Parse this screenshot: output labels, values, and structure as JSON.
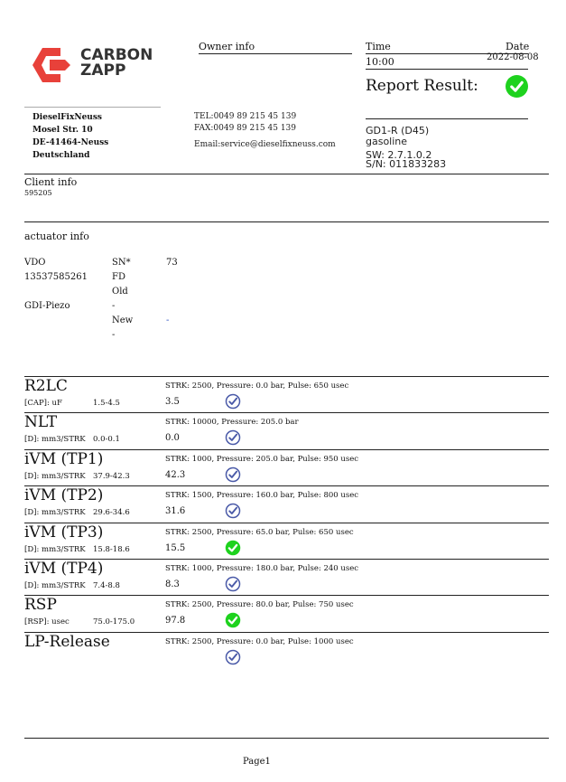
{
  "logo": {
    "line1": "CARBON",
    "line2": "ZAPP",
    "color": "#e8413a"
  },
  "owner": {
    "label": "Owner info",
    "name": "DieselFixNeuss",
    "street": "Mosel Str. 10",
    "city": "DE-41464-Neuss",
    "country": "Deutschland",
    "tel": "TEL:0049 89 215 45 139",
    "fax": "FAX:0049 89 215 45 139",
    "email": "Email:service@dieselfixneuss.com"
  },
  "report": {
    "time_label": "Time",
    "date_label": "Date",
    "time": "10:00",
    "date": "2022-08-08",
    "result_label": "Report Result:",
    "result_icon": "check-circle-green",
    "device": "GD1-R (D45)",
    "fuel": "gasoline",
    "sw": "SW: 2.7.1.0.2",
    "sn": "S/N: 011833283"
  },
  "client": {
    "label": "Client info",
    "id": "595205"
  },
  "actuator": {
    "label": "actuator info",
    "col1": [
      "VDO",
      "13537585261",
      "",
      "GDI-Piezo"
    ],
    "col2": [
      "SN*",
      "FD",
      "Old",
      "-",
      "New",
      "-"
    ],
    "col3": [
      "73",
      "",
      "",
      "",
      "-"
    ]
  },
  "tests": [
    {
      "name": "R2LC",
      "unit": "[CAP]: uF",
      "range": "1.5-4.5",
      "conditions": "STRK: 2500, Pressure: 0.0 bar, Pulse: 650 usec",
      "value": "3.5",
      "status": "check-outline"
    },
    {
      "name": "NLT",
      "unit": "[D]: mm3/STRK",
      "range": "0.0-0.1",
      "conditions": "STRK: 10000, Pressure: 205.0 bar",
      "value": "0.0",
      "status": "check-outline"
    },
    {
      "name": "iVM (TP1)",
      "unit": "[D]: mm3/STRK",
      "range": "37.9-42.3",
      "conditions": "STRK: 1000, Pressure: 205.0 bar, Pulse: 950 usec",
      "value": "42.3",
      "status": "check-outline"
    },
    {
      "name": "iVM (TP2)",
      "unit": "[D]: mm3/STRK",
      "range": "29.6-34.6",
      "conditions": "STRK: 1500, Pressure: 160.0 bar, Pulse: 800 usec",
      "value": "31.6",
      "status": "check-outline"
    },
    {
      "name": "iVM (TP3)",
      "unit": "[D]: mm3/STRK",
      "range": "15.8-18.6",
      "conditions": "STRK: 2500, Pressure: 65.0 bar, Pulse: 650 usec",
      "value": "15.5",
      "status": "check-green"
    },
    {
      "name": "iVM (TP4)",
      "unit": "[D]: mm3/STRK",
      "range": "7.4-8.8",
      "conditions": "STRK: 1000, Pressure: 180.0 bar, Pulse: 240 usec",
      "value": "8.3",
      "status": "check-outline"
    },
    {
      "name": "RSP",
      "unit": "[RSP]: usec",
      "range": "75.0-175.0",
      "conditions": "STRK: 2500, Pressure: 80.0 bar, Pulse: 750 usec",
      "value": "97.8",
      "status": "check-green"
    },
    {
      "name": "LP-Release",
      "unit": "",
      "range": "",
      "conditions": "STRK: 2500, Pressure: 0.0 bar, Pulse: 1000 usec",
      "value": "",
      "status": "check-outline"
    }
  ],
  "footer": {
    "page": "Page1"
  },
  "colors": {
    "green": "#1ed21e",
    "outline": "#4a5aa8"
  }
}
